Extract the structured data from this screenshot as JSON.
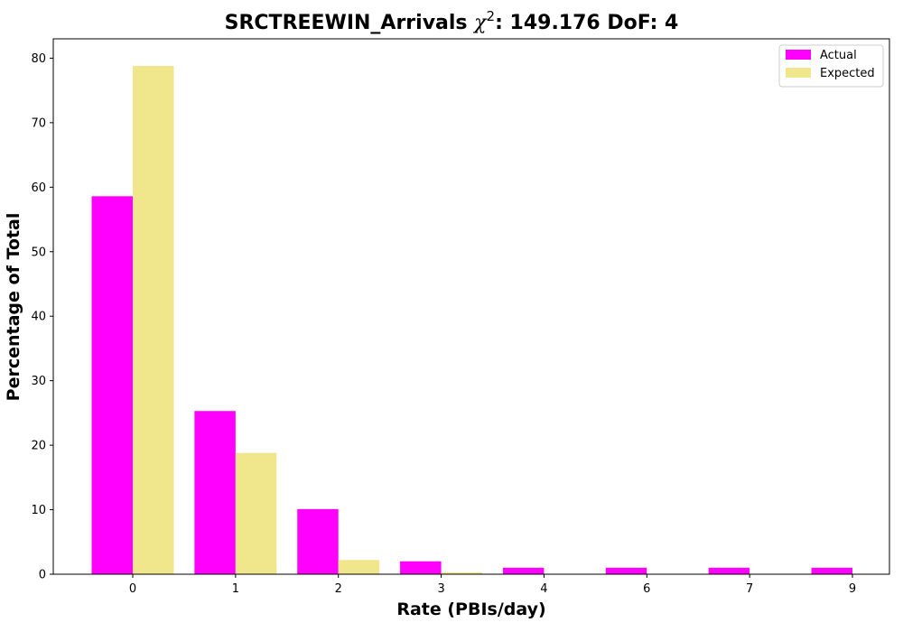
{
  "chart_data": {
    "type": "bar",
    "title_main": "SRCTREEWIN_Arrivals ",
    "title_chi": "χ",
    "title_sup": "2",
    "title_rest": ": 149.176 DoF: 4",
    "xlabel": "Rate (PBIs/day)",
    "ylabel": "Percentage of Total",
    "categories": [
      "0",
      "1",
      "2",
      "3",
      "4",
      "6",
      "7",
      "9"
    ],
    "series": [
      {
        "name": "Actual",
        "color": "#ff00ff",
        "values": [
          58.6,
          25.3,
          10.1,
          2.0,
          1.0,
          1.0,
          1.0,
          1.0
        ]
      },
      {
        "name": "Expected",
        "color": "#f0e68c",
        "values": [
          78.8,
          18.8,
          2.2,
          0.3,
          0.0,
          0.0,
          0.0,
          0.0
        ]
      }
    ],
    "ylim": [
      0,
      83
    ],
    "yticks": [
      0,
      10,
      20,
      30,
      40,
      50,
      60,
      70,
      80
    ],
    "grid": false,
    "legend": "top-right"
  }
}
